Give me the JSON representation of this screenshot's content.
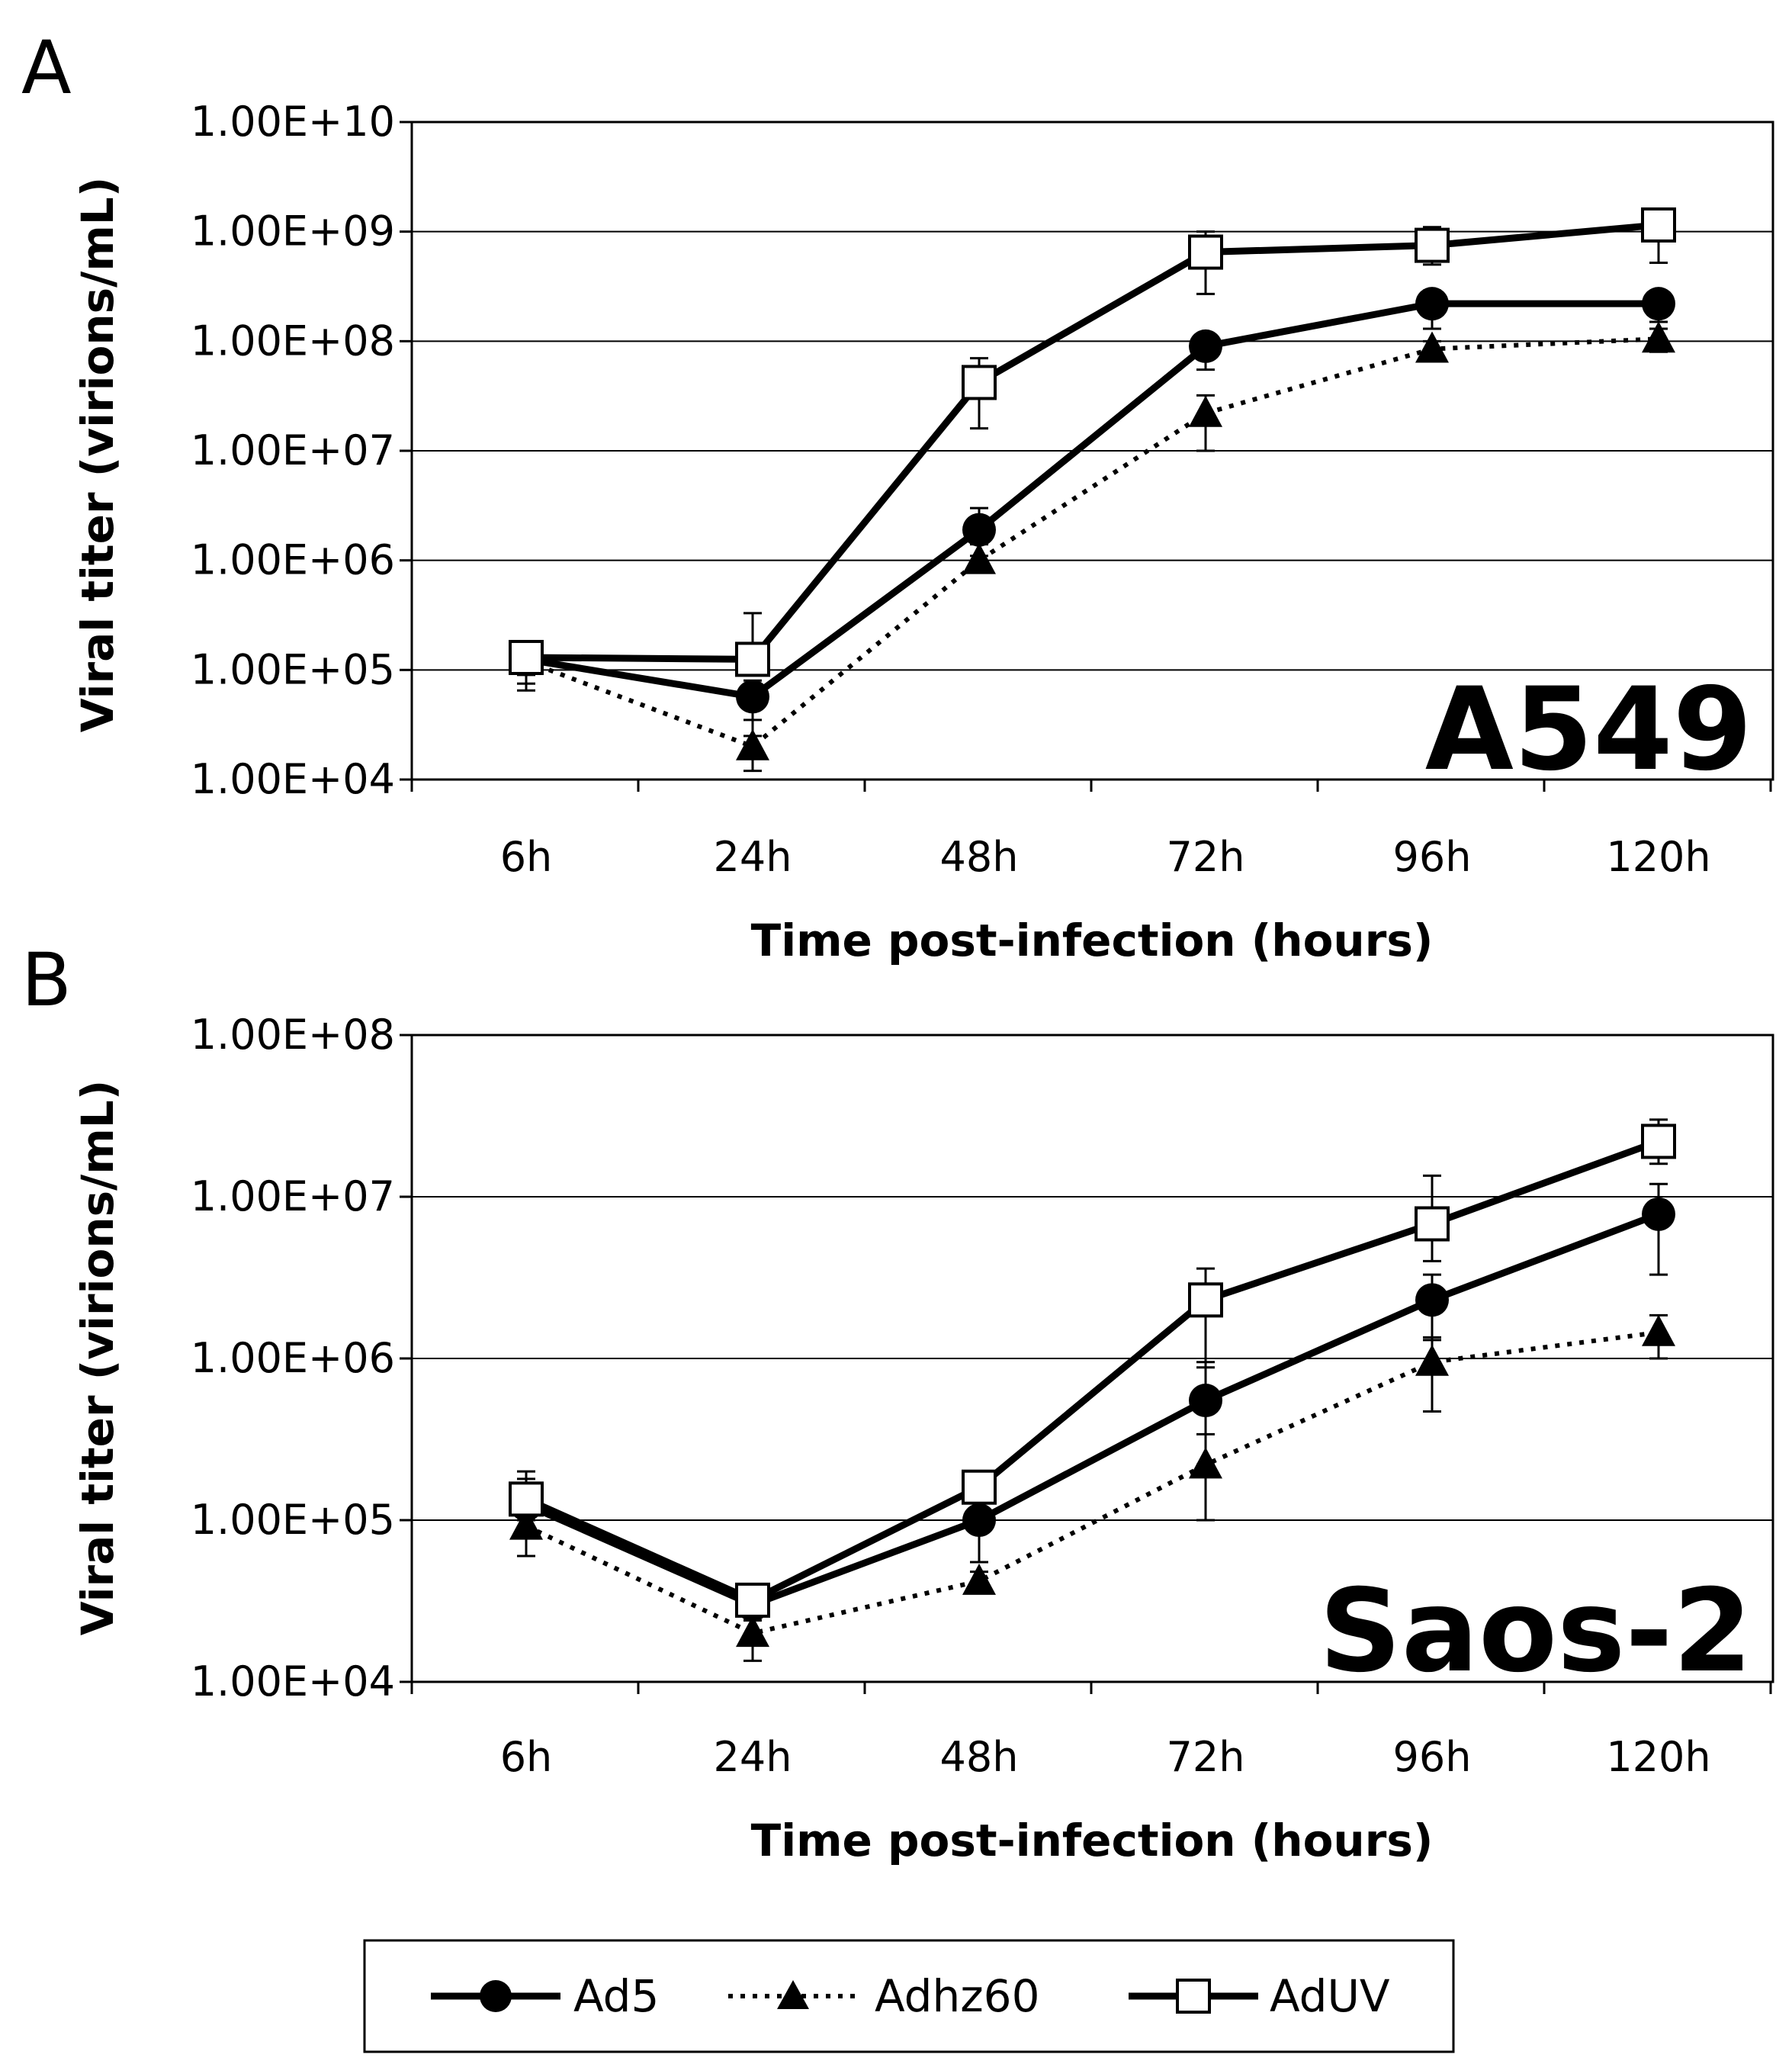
{
  "legend": {
    "items": [
      {
        "label": "Ad5",
        "line": "solid",
        "marker": "circle-filled"
      },
      {
        "label": "Adhz60",
        "line": "dotted",
        "marker": "triangle-filled"
      },
      {
        "label": "AdUV",
        "line": "solid",
        "marker": "square-open"
      }
    ]
  },
  "chart_data": [
    {
      "type": "line",
      "panel": "A",
      "cell_line": "A549",
      "xlabel": "Time post-infection (hours)",
      "ylabel": "Viral titer (virions/mL)",
      "yscale": "log",
      "ylim": [
        10000,
        10000000000
      ],
      "yticks": [
        "1.00E+04",
        "1.00E+05",
        "1.00E+06",
        "1.00E+07",
        "1.00E+08",
        "1.00E+09",
        "1.00E+10"
      ],
      "grid": true,
      "categories": [
        "6h",
        "24h",
        "48h",
        "72h",
        "96h",
        "120h"
      ],
      "series": [
        {
          "name": "Ad5",
          "values": [
            125000,
            57000,
            1900000,
            90000000,
            220000000,
            220000000
          ],
          "err_low": [
            75000,
            25000,
            1100000,
            55000000,
            130000000,
            150000000
          ],
          "err_high": [
            160000,
            80000,
            3000000,
            110000000,
            290000000,
            280000000
          ]
        },
        {
          "name": "Adhz60",
          "values": [
            120000,
            20000,
            1000000,
            22000000,
            85000000,
            105000000
          ],
          "err_low": [
            65000,
            12000,
            800000,
            10000000,
            70000000,
            80000000
          ],
          "err_high": [
            150000,
            35000,
            1400000,
            32000000,
            100000000,
            130000000
          ]
        },
        {
          "name": "AdUV",
          "values": [
            130000,
            125000,
            42000000,
            650000000,
            750000000,
            1150000000
          ],
          "err_low": [
            90000,
            90000,
            16000000,
            270000000,
            500000000,
            520000000
          ],
          "err_high": [
            160000,
            330000,
            70000000,
            1000000000,
            1100000000,
            1400000000
          ]
        }
      ]
    },
    {
      "type": "line",
      "panel": "B",
      "cell_line": "Saos-2",
      "xlabel": "Time post-infection (hours)",
      "ylabel": "Viral titer (virions/mL)",
      "yscale": "log",
      "ylim": [
        10000,
        100000000
      ],
      "yticks": [
        "1.00E+04",
        "1.00E+05",
        "1.00E+06",
        "1.00E+07",
        "1.00E+08"
      ],
      "grid": true,
      "categories": [
        "6h",
        "24h",
        "48h",
        "72h",
        "96h",
        "120h"
      ],
      "series": [
        {
          "name": "Ad5",
          "values": [
            125000,
            30000,
            100000,
            550000,
            2300000,
            7800000
          ],
          "err_low": [
            85000,
            24000,
            55000,
            220000,
            1300000,
            3300000
          ],
          "err_high": [
            180000,
            38000,
            170000,
            950000,
            3300000,
            12000000
          ]
        },
        {
          "name": "Adhz60",
          "values": [
            92000,
            20000,
            42000,
            220000,
            950000,
            1450000
          ],
          "err_low": [
            60000,
            13500,
            38000,
            100000,
            470000,
            1000000
          ],
          "err_high": [
            120000,
            24000,
            48000,
            340000,
            1350000,
            1850000
          ]
        },
        {
          "name": "AdUV",
          "values": [
            135000,
            32000,
            160000,
            2300000,
            6800000,
            22000000
          ],
          "err_low": [
            100000,
            25000,
            130000,
            880000,
            4000000,
            16000000
          ],
          "err_high": [
            200000,
            40000,
            190000,
            3600000,
            13500000,
            30000000
          ]
        }
      ]
    }
  ]
}
